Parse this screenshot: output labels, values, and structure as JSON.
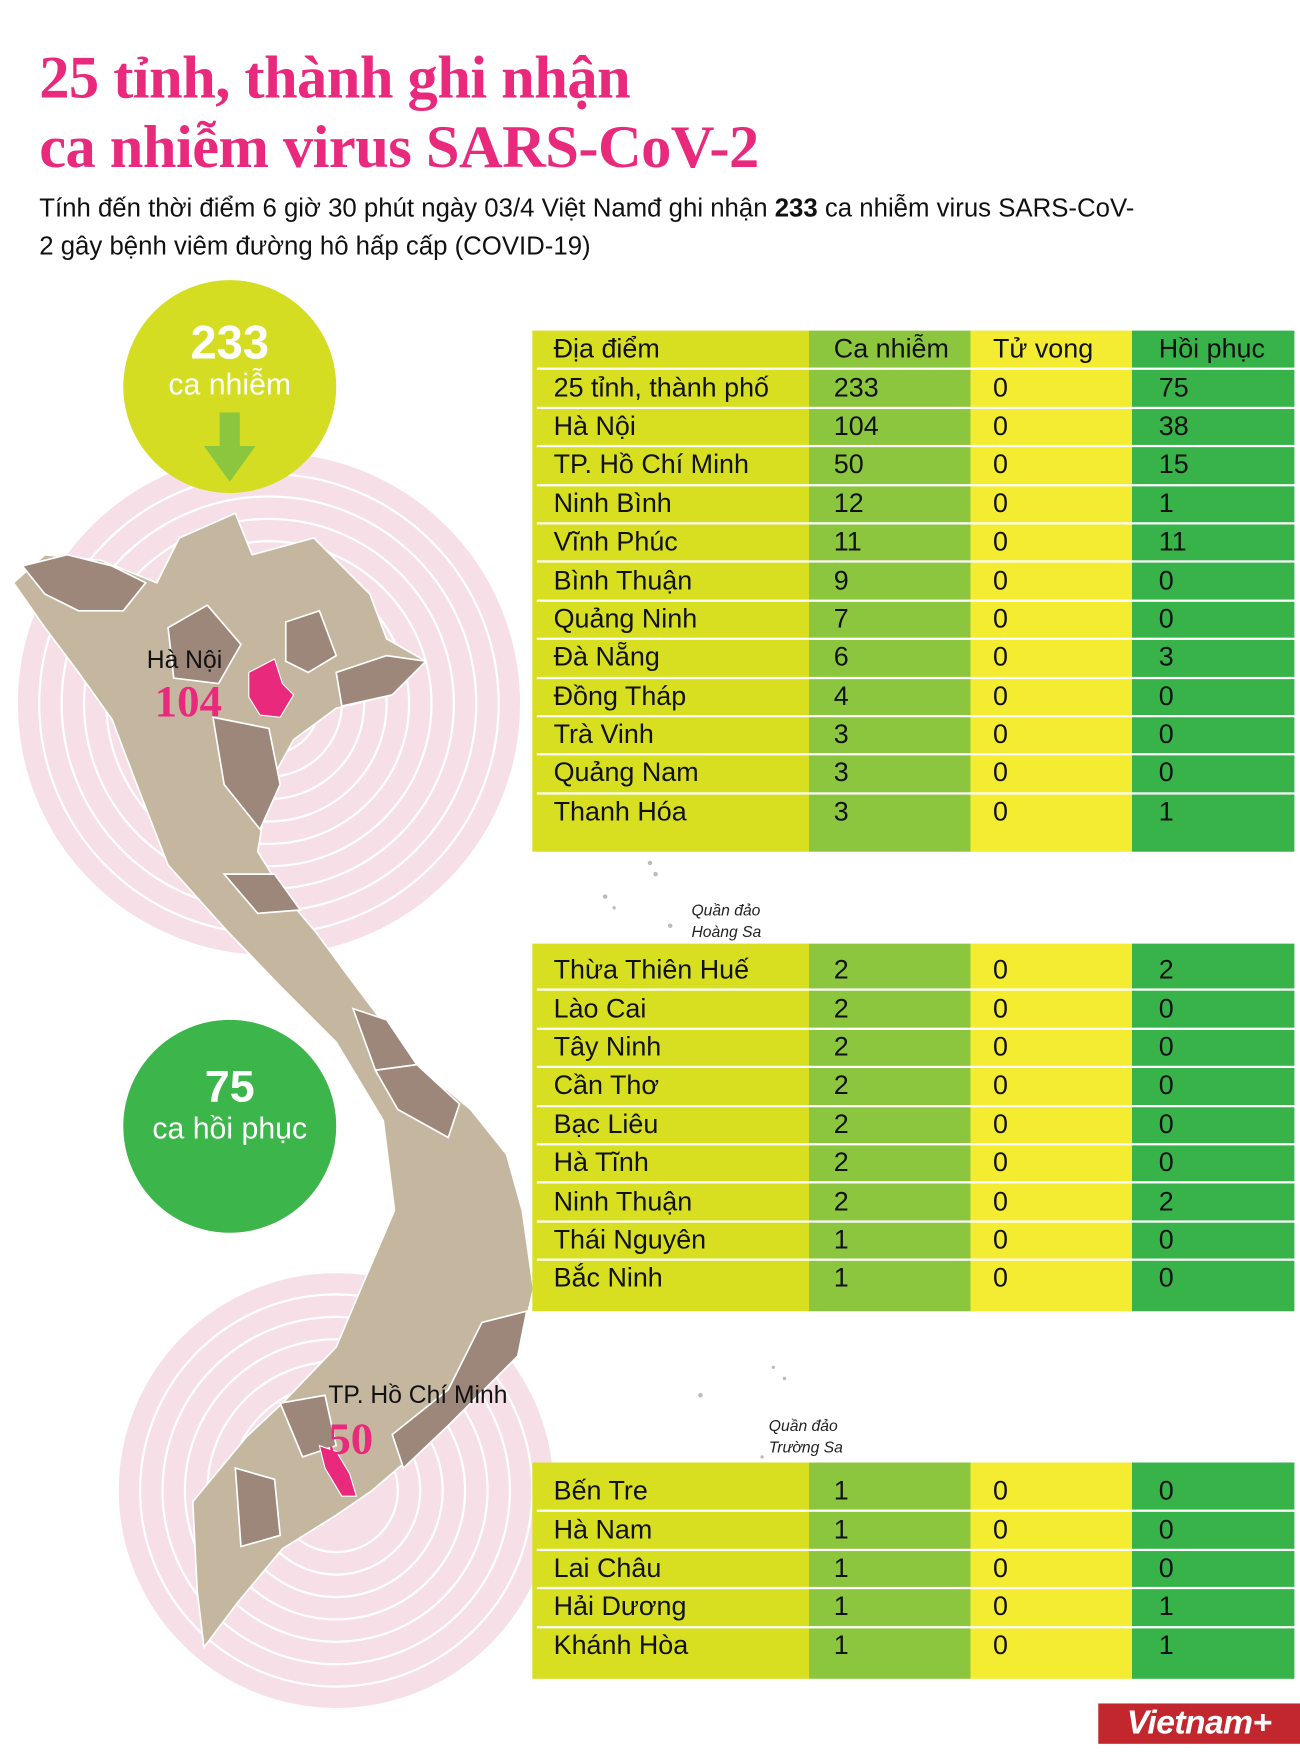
{
  "header": {
    "title_line1": "25 tỉnh, thành ghi nhận",
    "title_line2": "ca nhiễm virus SARS-CoV-2",
    "subtitle_part1": "Tính đến thời điểm 6 giờ 30 phút ngày 03/4  Việt Namđ ghi nhận ",
    "subtitle_bold": "233",
    "subtitle_part2": " ca nhiễm virus SARS-CoV-2 gây bệnh viêm đường hô hấp cấp (COVID-19)"
  },
  "summary": {
    "infected_count": "233",
    "infected_label": "ca nhiễm",
    "recovered_count": "75",
    "recovered_label": "ca hồi phục"
  },
  "map": {
    "hanoi_label": "Hà Nội",
    "hanoi_count": "104",
    "hcm_label": "TP. Hồ Chí Minh",
    "hcm_count": "50",
    "paracel_line1": "Quần đảo",
    "paracel_line2": "Hoàng Sa",
    "spratly_line1": "Quần đảo",
    "spratly_line2": "Trường Sa"
  },
  "colors": {
    "title": "#e8297c",
    "col_location": "#d8df21",
    "col_infected": "#8cc63f",
    "col_deaths": "#f3ec30",
    "col_recovered": "#38b34a",
    "map_light": "#c5b79f",
    "map_dark": "#9c877a",
    "rings": "#f7dfe8"
  },
  "table": {
    "headers": [
      "Địa điểm",
      "Ca nhiễm",
      "Tử vong",
      "Hồi phục"
    ],
    "groups": [
      [
        [
          "25 tỉnh, thành phố",
          "233",
          "0",
          "75"
        ],
        [
          "Hà Nội",
          "104",
          "0",
          "38"
        ],
        [
          "TP. Hồ Chí Minh",
          "50",
          "0",
          "15"
        ],
        [
          "Ninh Bình",
          "12",
          "0",
          "1"
        ],
        [
          "Vĩnh Phúc",
          "11",
          "0",
          "11"
        ],
        [
          "Bình Thuận",
          "9",
          "0",
          "0"
        ],
        [
          "Quảng Ninh",
          "7",
          "0",
          "0"
        ],
        [
          "Đà Nẵng",
          "6",
          "0",
          "3"
        ],
        [
          "Đồng Tháp",
          "4",
          "0",
          "0"
        ],
        [
          "Trà Vinh",
          "3",
          "0",
          "0"
        ],
        [
          "Quảng Nam",
          "3",
          "0",
          "0"
        ],
        [
          "Thanh Hóa",
          "3",
          "0",
          "1"
        ]
      ],
      [
        [
          "Thừa Thiên Huế",
          "2",
          "0",
          "2"
        ],
        [
          "Lào Cai",
          "2",
          "0",
          "0"
        ],
        [
          "Tây Ninh",
          "2",
          "0",
          "0"
        ],
        [
          "Cần Thơ",
          "2",
          "0",
          "0"
        ],
        [
          "Bạc Liêu",
          "2",
          "0",
          "0"
        ],
        [
          "Hà Tĩnh",
          "2",
          "0",
          "0"
        ],
        [
          "Ninh Thuận",
          "2",
          "0",
          "2"
        ],
        [
          "Thái Nguyên",
          "1",
          "0",
          "0"
        ],
        [
          "Bắc Ninh",
          "1",
          "0",
          "0"
        ]
      ],
      [
        [
          "Bến Tre",
          "1",
          "0",
          "0"
        ],
        [
          "Hà Nam",
          "1",
          "0",
          "0"
        ],
        [
          "Lai Châu",
          "1",
          "0",
          "0"
        ],
        [
          "Hải Dương",
          "1",
          "0",
          "1"
        ],
        [
          "Khánh Hòa",
          "1",
          "0",
          "1"
        ]
      ]
    ]
  },
  "logo": "Vietnam+"
}
